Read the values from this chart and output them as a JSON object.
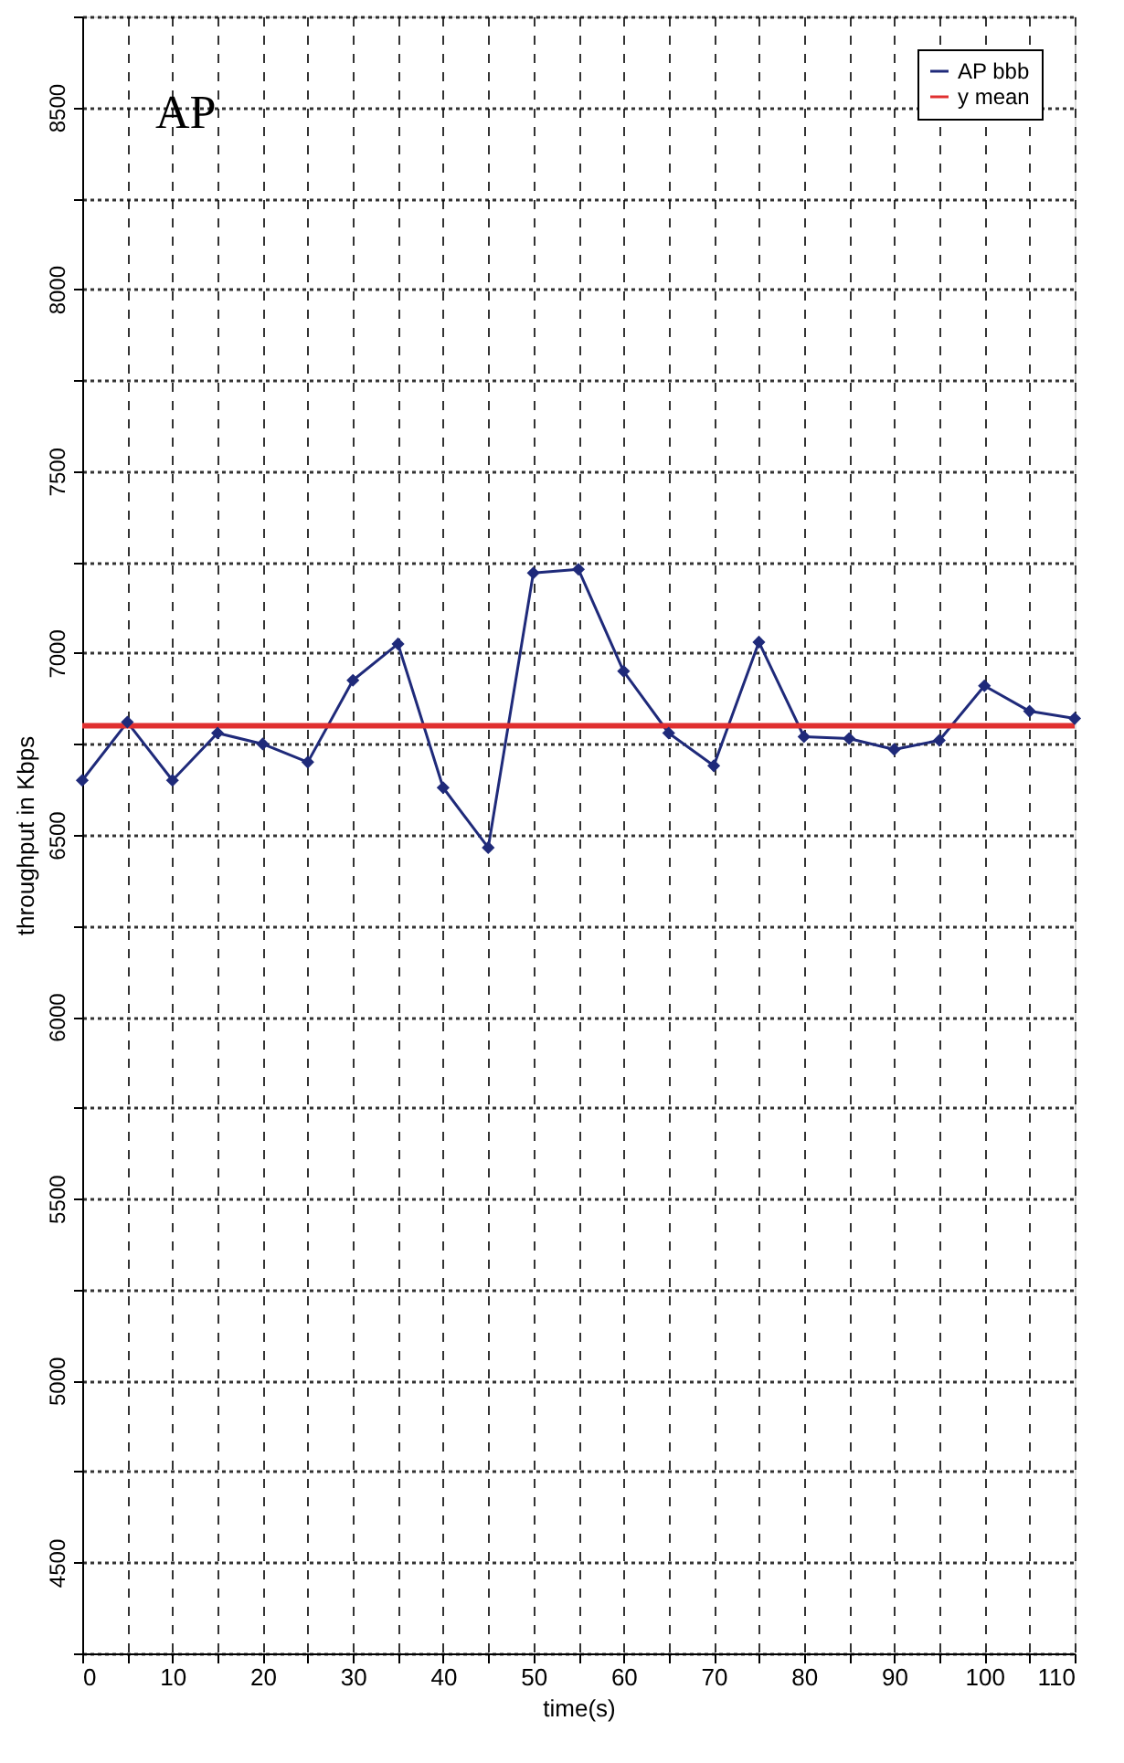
{
  "chart_data": {
    "type": "line",
    "title": "AP",
    "xlabel": "time(s)",
    "ylabel": "throughput in Kbps",
    "x": [
      0,
      5,
      10,
      15,
      20,
      25,
      30,
      35,
      40,
      45,
      50,
      55,
      60,
      65,
      70,
      75,
      80,
      85,
      90,
      95,
      100,
      105,
      110
    ],
    "series": [
      {
        "name": "AP bbb",
        "color": "#1f2a7a",
        "marker": "diamond",
        "values": [
          6650,
          6810,
          6650,
          6780,
          6750,
          6700,
          6925,
          7025,
          6630,
          6465,
          7220,
          7230,
          6950,
          6780,
          6690,
          7030,
          6770,
          6765,
          6735,
          6760,
          6910,
          6840,
          6820
        ]
      },
      {
        "name": "y mean",
        "color": "#e03030",
        "marker": "none",
        "x": [
          0,
          110
        ],
        "values": [
          6800,
          6800
        ]
      }
    ],
    "xlim": [
      0,
      110
    ],
    "ylim": [
      4250,
      8750
    ],
    "xticks": [
      0,
      {
        "value": 5,
        "label": null
      },
      10,
      {
        "value": 15,
        "label": null
      },
      20,
      {
        "value": 25,
        "label": null
      },
      30,
      {
        "value": 35,
        "label": null
      },
      40,
      {
        "value": 45,
        "label": null
      },
      50,
      {
        "value": 55,
        "label": null
      },
      60,
      {
        "value": 65,
        "label": null
      },
      70,
      {
        "value": 75,
        "label": null
      },
      80,
      {
        "value": 85,
        "label": null
      },
      90,
      {
        "value": 95,
        "label": null
      },
      100,
      {
        "value": 105,
        "label": null
      },
      110
    ],
    "yticks": [
      {
        "value": 4250,
        "label": null
      },
      4500,
      {
        "value": 4750,
        "label": null
      },
      5000,
      {
        "value": 5250,
        "label": null
      },
      5500,
      {
        "value": 5750,
        "label": null
      },
      6000,
      {
        "value": 6250,
        "label": null
      },
      6500,
      {
        "value": 6750,
        "label": null
      },
      7000,
      {
        "value": 7250,
        "label": null
      },
      7500,
      {
        "value": 7750,
        "label": null
      },
      8000,
      {
        "value": 8250,
        "label": null
      },
      8500,
      {
        "value": 8750,
        "label": null
      }
    ],
    "grid": true,
    "legend": "top right",
    "line_style": "solid"
  }
}
